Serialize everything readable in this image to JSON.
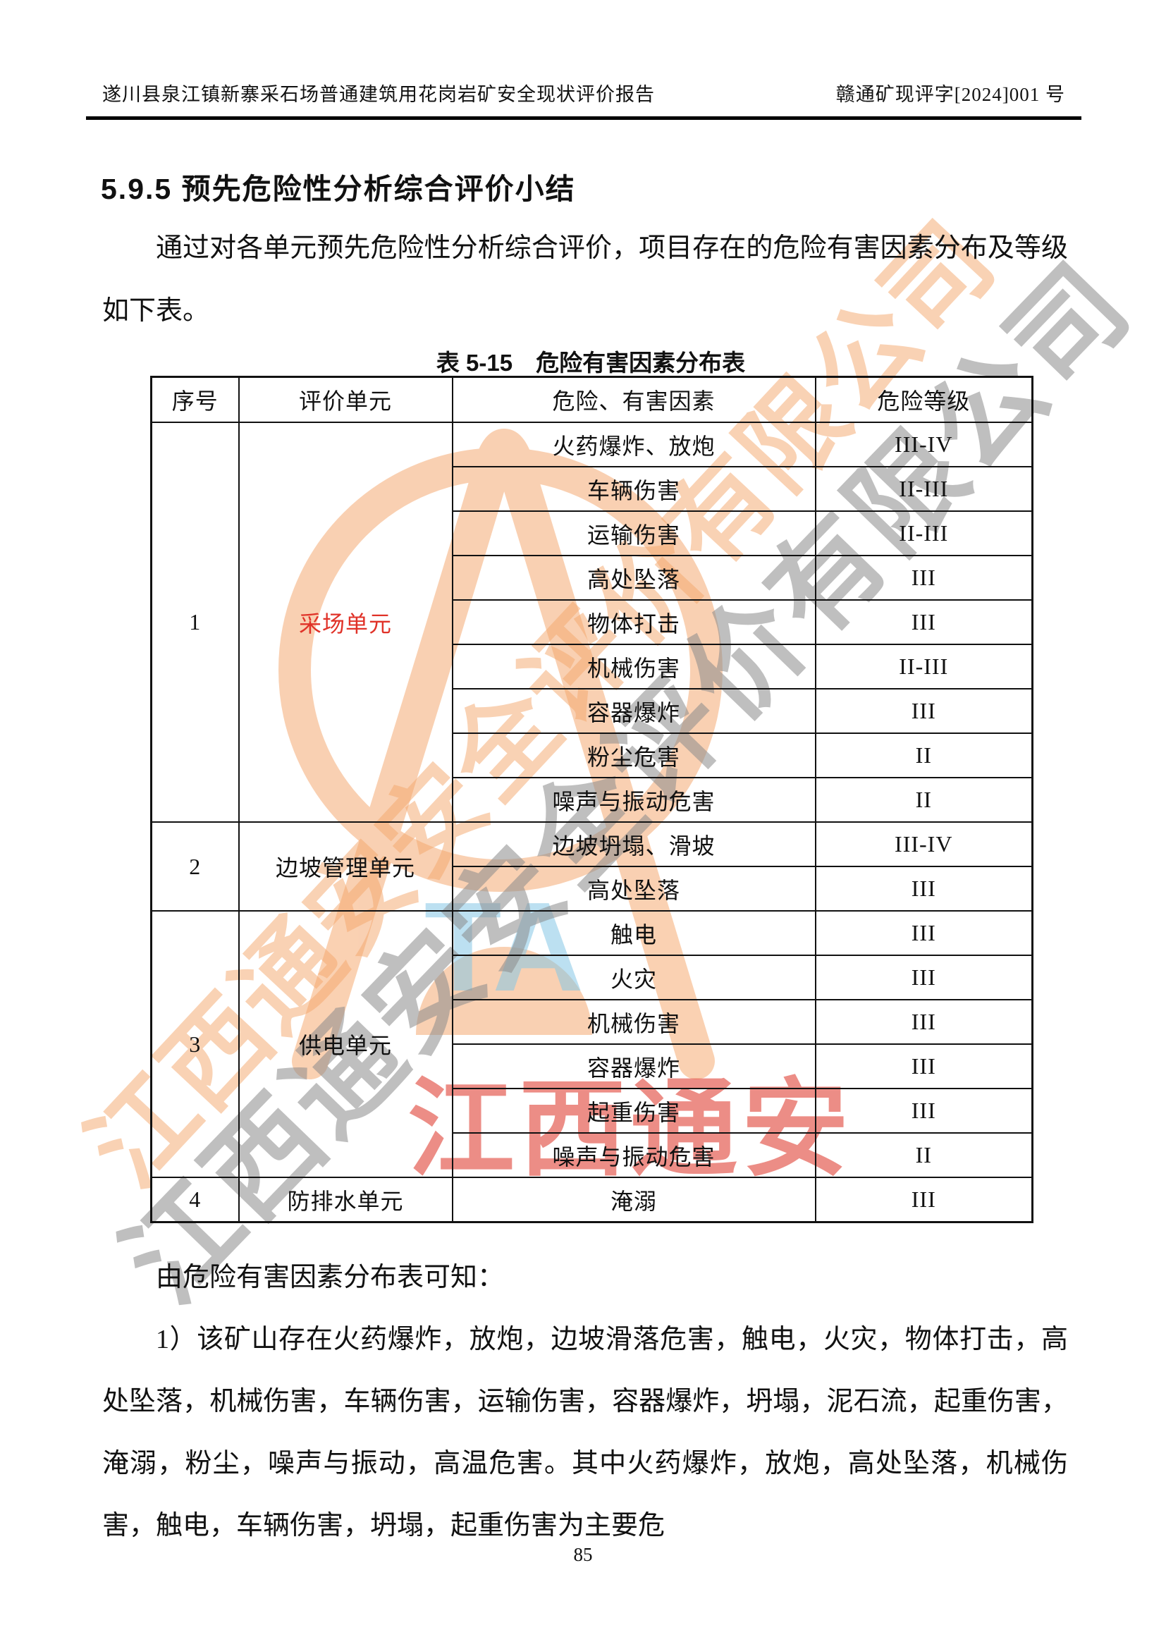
{
  "header": {
    "left_title": "遂川县泉江镇新寨采石场普通建筑用花岗岩矿安全现状评价报告",
    "right_code": "赣通矿现评字[2024]001 号"
  },
  "section": {
    "title": "5.9.5 预先危险性分析综合评价小结"
  },
  "paragraphs": {
    "intro": "通过对各单元预先危险性分析综合评价，项目存在的危险有害因素分布及等级如下表。",
    "lead": "由危险有害因素分布表可知：",
    "body": "1）该矿山存在火药爆炸，放炮，边坡滑落危害，触电，火灾，物体打击，高处坠落，机械伤害，车辆伤害，运输伤害，容器爆炸，坍塌，泥石流，起重伤害，淹溺，粉尘，噪声与振动，高温危害。其中火药爆炸，放炮，高处坠落，机械伤害，触电，车辆伤害，坍塌，起重伤害为主要危"
  },
  "table": {
    "caption": "表 5-15　危险有害因素分布表",
    "columns": [
      "序号",
      "评价单元",
      "危险、有害因素",
      "危险等级"
    ],
    "groups": [
      {
        "no": "1",
        "unit": "采场单元",
        "unit_color": "#e03228",
        "rows": [
          {
            "factor": "火药爆炸、放炮",
            "grade": "III-IV"
          },
          {
            "factor": "车辆伤害",
            "grade": "II-III"
          },
          {
            "factor": "运输伤害",
            "grade": "II-III"
          },
          {
            "factor": "高处坠落",
            "grade": "III"
          },
          {
            "factor": "物体打击",
            "grade": "III"
          },
          {
            "factor": "机械伤害",
            "grade": "II-III"
          },
          {
            "factor": "容器爆炸",
            "grade": "III"
          },
          {
            "factor": "粉尘危害",
            "grade": "II"
          },
          {
            "factor": "噪声与振动危害",
            "grade": "II"
          }
        ]
      },
      {
        "no": "2",
        "unit": "边坡管理单元",
        "unit_color": "",
        "rows": [
          {
            "factor": "边坡坍塌、滑坡",
            "grade": "III-IV"
          },
          {
            "factor": "高处坠落",
            "grade": "III"
          }
        ]
      },
      {
        "no": "3",
        "unit": "供电单元",
        "unit_color": "",
        "rows": [
          {
            "factor": "触电",
            "grade": "III"
          },
          {
            "factor": "火灾",
            "grade": "III"
          },
          {
            "factor": "机械伤害",
            "grade": "III"
          },
          {
            "factor": "容器爆炸",
            "grade": "III"
          },
          {
            "factor": "起重伤害",
            "grade": "III"
          },
          {
            "factor": "噪声与振动危害",
            "grade": "II"
          }
        ]
      },
      {
        "no": "4",
        "unit": "防排水单元",
        "unit_color": "",
        "rows": [
          {
            "factor": "淹溺",
            "grade": "III"
          }
        ]
      }
    ]
  },
  "watermark": {
    "diagonal_text": "江西通安安全评价有限公司",
    "red_text": "江西通安",
    "logo_letters": "TA"
  },
  "colors": {
    "watermark_orange": "#f5a76c",
    "watermark_gray": "#8c8c8c",
    "watermark_red": "#e2493d",
    "watermark_blue": "#86c8e6",
    "unit_red": "#e03228"
  },
  "footer": {
    "page_number": "85"
  }
}
